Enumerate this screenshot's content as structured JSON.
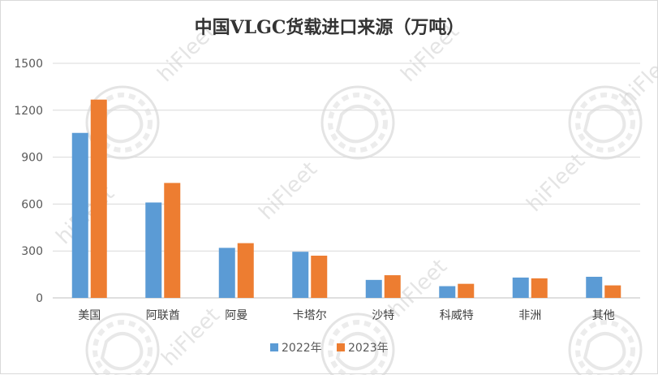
{
  "chart_data": {
    "type": "bar",
    "title": "中国VLGC货载进口来源（万吨）",
    "categories": [
      "美国",
      "阿联酋",
      "阿曼",
      "卡塔尔",
      "沙特",
      "科威特",
      "非洲",
      "其他"
    ],
    "series": [
      {
        "name": "2022年",
        "color": "#5B9BD5",
        "values": [
          1055,
          610,
          320,
          295,
          115,
          75,
          130,
          135
        ]
      },
      {
        "name": "2023年",
        "color": "#ED7D31",
        "values": [
          1268,
          735,
          350,
          270,
          145,
          90,
          125,
          80
        ]
      }
    ],
    "xlabel": "",
    "ylabel": "",
    "ylim": [
      0,
      1500
    ],
    "yticks": [
      0,
      300,
      600,
      900,
      1200,
      1500
    ],
    "grid": true,
    "legend": "bottom"
  },
  "watermark": {
    "text": "hiFleet",
    "icon": "dragon-seal-icon"
  }
}
